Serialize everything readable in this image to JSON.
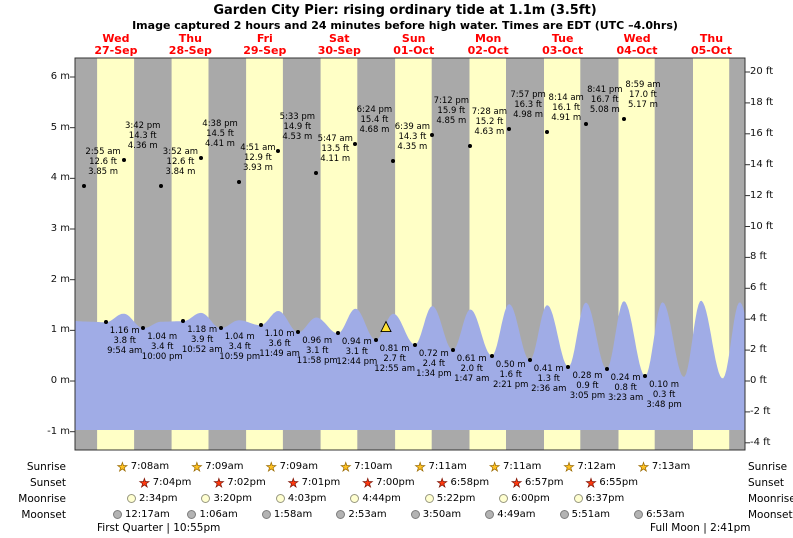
{
  "title": "Garden City Pier: rising ordinary tide at 1.1m (3.5ft)",
  "subtitle": "Image captured 2 hours and 24 minutes before high water. Times are EDT (UTC –4.0hrs)",
  "days": [
    {
      "name": "Wed",
      "date": "27-Sep"
    },
    {
      "name": "Thu",
      "date": "28-Sep"
    },
    {
      "name": "Fri",
      "date": "29-Sep"
    },
    {
      "name": "Sat",
      "date": "30-Sep"
    },
    {
      "name": "Sun",
      "date": "01-Oct"
    },
    {
      "name": "Mon",
      "date": "02-Oct"
    },
    {
      "name": "Tue",
      "date": "03-Oct"
    },
    {
      "name": "Wed",
      "date": "04-Oct"
    },
    {
      "name": "Thu",
      "date": "05-Oct"
    }
  ],
  "y_axis_left": [
    "6 m",
    "5 m",
    "4 m",
    "3 m",
    "2 m",
    "1 m",
    "0 m",
    "-1 m"
  ],
  "y_axis_right": [
    "20 ft",
    "18 ft",
    "16 ft",
    "14 ft",
    "12 ft",
    "10 ft",
    "8 ft",
    "6 ft",
    "4 ft",
    "2 ft",
    "0 ft",
    "-2 ft",
    "-4 ft"
  ],
  "chart_data": {
    "type": "area",
    "title": "Tide height at Garden City Pier, Wed 27-Sep to Thu 05-Oct",
    "ylabel_left": "meters",
    "ylabel_right": "feet",
    "ylim_m": [
      -1,
      6
    ],
    "ylim_ft": [
      -4,
      20
    ],
    "high_tides": [
      {
        "t": 2.92,
        "day": "Wed 27-Sep",
        "time": "2:55 am",
        "ft": 12.6,
        "m": 3.85
      },
      {
        "t": 15.7,
        "day": "Wed 27-Sep",
        "time": "3:42 pm",
        "ft": 14.3,
        "m": 4.36
      },
      {
        "t": 27.87,
        "day": "Thu 28-Sep",
        "time": "3:52 am",
        "ft": 12.6,
        "m": 3.84
      },
      {
        "t": 40.63,
        "day": "Thu 28-Sep",
        "time": "4:38 pm",
        "ft": 14.5,
        "m": 4.41
      },
      {
        "t": 52.85,
        "day": "Fri 29-Sep",
        "time": "4:51 am",
        "ft": 12.9,
        "m": 3.93
      },
      {
        "t": 65.55,
        "day": "Fri 29-Sep",
        "time": "5:33 pm",
        "ft": 14.9,
        "m": 4.53
      },
      {
        "t": 77.78,
        "day": "Sat 30-Sep",
        "time": "5:47 am",
        "ft": 13.5,
        "m": 4.11
      },
      {
        "t": 90.4,
        "day": "Sat 30-Sep",
        "time": "6:24 pm",
        "ft": 15.4,
        "m": 4.68
      },
      {
        "t": 102.65,
        "day": "Sun 01-Oct",
        "time": "6:39 am",
        "ft": 14.3,
        "m": 4.35
      },
      {
        "t": 115.2,
        "day": "Sun 01-Oct",
        "time": "7:12 pm",
        "ft": 15.9,
        "m": 4.85
      },
      {
        "t": 127.47,
        "day": "Mon 02-Oct",
        "time": "7:28 am",
        "ft": 15.2,
        "m": 4.63
      },
      {
        "t": 139.95,
        "day": "Mon 02-Oct",
        "time": "7:57 pm",
        "ft": 16.3,
        "m": 4.98
      },
      {
        "t": 152.23,
        "day": "Tue 03-Oct",
        "time": "8:14 am",
        "ft": 16.1,
        "m": 4.91
      },
      {
        "t": 164.68,
        "day": "Tue 03-Oct",
        "time": "8:41 pm",
        "ft": 16.7,
        "m": 5.08
      },
      {
        "t": 176.98,
        "day": "Wed 04-Oct",
        "time": "8:59 am",
        "ft": 17.0,
        "m": 5.17
      }
    ],
    "low_tides": [
      {
        "t": 9.9,
        "day": "Wed 27-Sep",
        "time": "9:54 am",
        "ft": 3.8,
        "m": 1.16
      },
      {
        "t": 22.0,
        "day": "Wed 27-Sep",
        "time": "10:00 pm",
        "ft": 3.4,
        "m": 1.04
      },
      {
        "t": 34.87,
        "day": "Thu 28-Sep",
        "time": "10:52 am",
        "ft": 3.9,
        "m": 1.18
      },
      {
        "t": 46.98,
        "day": "Thu 28-Sep",
        "time": "10:59 pm",
        "ft": 3.4,
        "m": 1.04
      },
      {
        "t": 59.82,
        "day": "Fri 29-Sep",
        "time": "11:49 am",
        "ft": 3.6,
        "m": 1.1
      },
      {
        "t": 71.97,
        "day": "Fri 29-Sep",
        "time": "11:58 pm",
        "ft": 3.1,
        "m": 0.96
      },
      {
        "t": 84.73,
        "day": "Sat 30-Sep",
        "time": "12:44 pm",
        "ft": 3.1,
        "m": 0.94
      },
      {
        "t": 96.92,
        "day": "Sun 01-Oct",
        "time": "12:55 am",
        "ft": 2.7,
        "m": 0.81
      },
      {
        "t": 109.57,
        "day": "Sun 01-Oct",
        "time": "1:34 pm",
        "ft": 2.4,
        "m": 0.72
      },
      {
        "t": 121.78,
        "day": "Mon 02-Oct",
        "time": "1:47 am",
        "ft": 2.0,
        "m": 0.61
      },
      {
        "t": 134.35,
        "day": "Mon 02-Oct",
        "time": "2:21 pm",
        "ft": 1.6,
        "m": 0.5
      },
      {
        "t": 146.6,
        "day": "Tue 03-Oct",
        "time": "2:36 am",
        "ft": 1.3,
        "m": 0.41
      },
      {
        "t": 159.08,
        "day": "Tue 03-Oct",
        "time": "3:05 pm",
        "ft": 0.9,
        "m": 0.28
      },
      {
        "t": 171.38,
        "day": "Wed 04-Oct",
        "time": "3:23 am",
        "ft": 0.8,
        "m": 0.24
      },
      {
        "t": 183.8,
        "day": "Wed 04-Oct",
        "time": "3:48 pm",
        "ft": 0.3,
        "m": 0.1
      }
    ],
    "current_position_marker": {
      "t_hours": 100.25,
      "note": "2 hours 24 minutes before high water"
    },
    "curve_padding": {
      "pre": [
        {
          "t": -3.0,
          "type": "L",
          "m": 1.2
        }
      ],
      "post": [
        {
          "t": 189.4,
          "type": "H",
          "m": 5.1
        },
        {
          "t": 196.3,
          "type": "L",
          "m": 0.08
        },
        {
          "t": 201.8,
          "type": "H",
          "m": 5.2
        },
        {
          "t": 208.8,
          "type": "L",
          "m": 0.05
        },
        {
          "t": 214.3,
          "type": "H",
          "m": 5.1
        },
        {
          "t": 220.5,
          "type": "L",
          "m": 0.1
        }
      ]
    }
  },
  "sun_moon": {
    "row_labels": [
      "Sunrise",
      "Sunset",
      "Moonrise",
      "Moonset"
    ],
    "sunrise": [
      "7:08am",
      "7:09am",
      "7:09am",
      "7:10am",
      "7:11am",
      "7:11am",
      "7:12am",
      "7:13am"
    ],
    "sunset": [
      "7:04pm",
      "7:02pm",
      "7:01pm",
      "7:00pm",
      "6:58pm",
      "6:57pm",
      "6:55pm"
    ],
    "moonrise": [
      "2:34pm",
      "3:20pm",
      "4:03pm",
      "4:44pm",
      "5:22pm",
      "6:00pm",
      "6:37pm"
    ],
    "moonset": [
      "12:17am",
      "1:06am",
      "1:58am",
      "2:53am",
      "3:50am",
      "4:49am",
      "5:51am",
      "6:53am"
    ]
  },
  "moon_phases": {
    "left": "First Quarter | 10:55pm",
    "right": "Full Moon | 2:41pm"
  },
  "colors": {
    "day_band": "#ffffc6",
    "night_band": "#a9a9a9",
    "tide_fill": "#a0ace6",
    "date_text": "#ff0000",
    "border": "#333333",
    "marker_fill": "#ffe135"
  }
}
